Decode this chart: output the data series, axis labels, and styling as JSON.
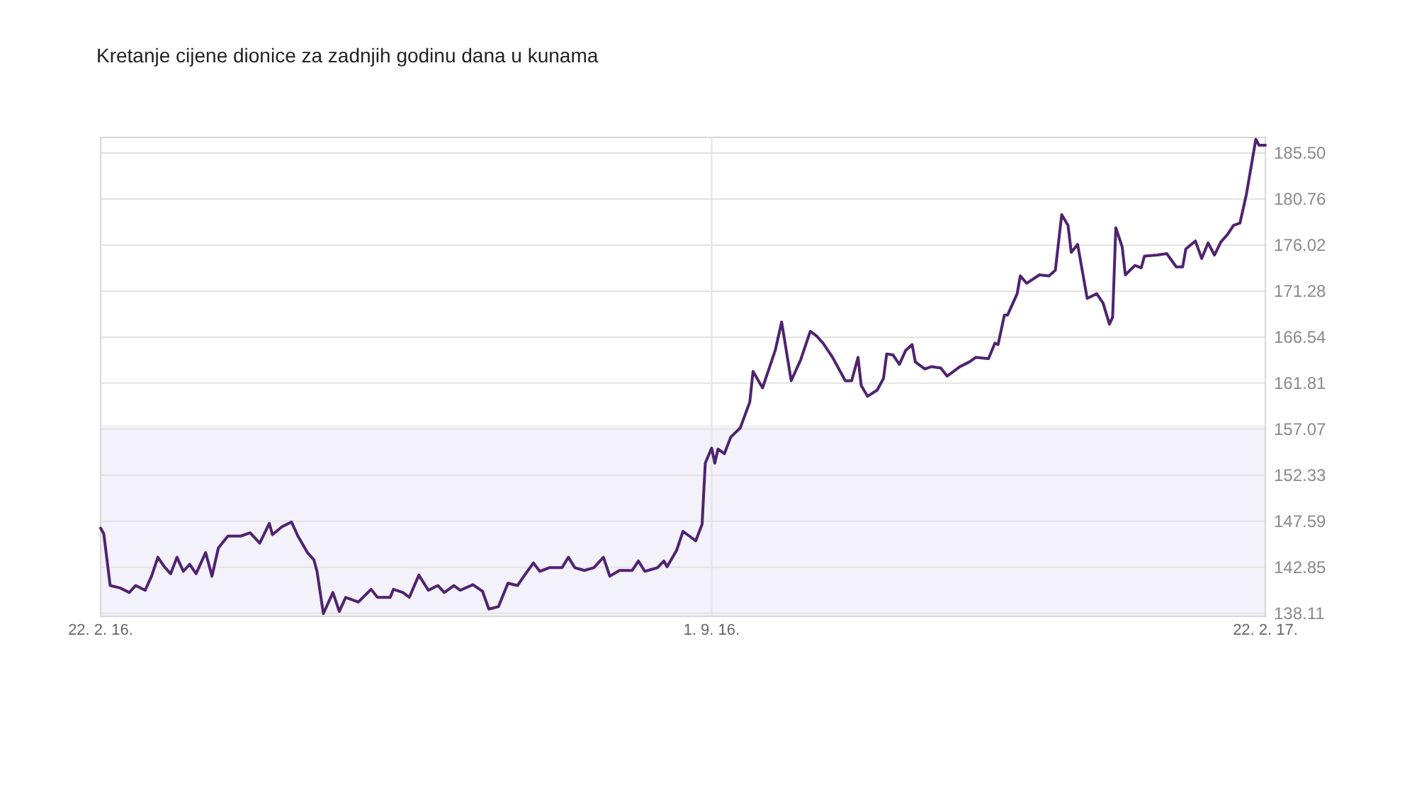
{
  "chart_data": {
    "type": "line",
    "title": "Kretanje cijene dionice za zadnjih godinu dana u kunama",
    "x": [
      "2016-02-22",
      "2016-02-23",
      "2016-02-25",
      "2016-02-28",
      "2016-03-02",
      "2016-03-04",
      "2016-03-07",
      "2016-03-09",
      "2016-03-11",
      "2016-03-13",
      "2016-03-15",
      "2016-03-17",
      "2016-03-19",
      "2016-03-21",
      "2016-03-23",
      "2016-03-26",
      "2016-03-28",
      "2016-03-30",
      "2016-04-02",
      "2016-04-06",
      "2016-04-09",
      "2016-04-12",
      "2016-04-15",
      "2016-04-16",
      "2016-04-19",
      "2016-04-22",
      "2016-04-24",
      "2016-04-27",
      "2016-04-29",
      "2016-04-30",
      "2016-05-02",
      "2016-05-05",
      "2016-05-07",
      "2016-05-09",
      "2016-05-13",
      "2016-05-17",
      "2016-05-19",
      "2016-05-23",
      "2016-05-24",
      "2016-05-27",
      "2016-05-29",
      "2016-06-01",
      "2016-06-04",
      "2016-06-07",
      "2016-06-09",
      "2016-06-12",
      "2016-06-14",
      "2016-06-18",
      "2016-06-21",
      "2016-06-23",
      "2016-06-26",
      "2016-06-29",
      "2016-07-02",
      "2016-07-04",
      "2016-07-07",
      "2016-07-09",
      "2016-07-12",
      "2016-07-16",
      "2016-07-18",
      "2016-07-20",
      "2016-07-23",
      "2016-07-26",
      "2016-07-29",
      "2016-07-31",
      "2016-08-03",
      "2016-08-07",
      "2016-08-09",
      "2016-08-11",
      "2016-08-15",
      "2016-08-17",
      "2016-08-18",
      "2016-08-21",
      "2016-08-23",
      "2016-08-25",
      "2016-08-27",
      "2016-08-29",
      "2016-08-30",
      "2016-09-01",
      "2016-09-02",
      "2016-09-03",
      "2016-09-05",
      "2016-09-07",
      "2016-09-10",
      "2016-09-13",
      "2016-09-14",
      "2016-09-17",
      "2016-09-20",
      "2016-09-21",
      "2016-09-23",
      "2016-09-26",
      "2016-09-29",
      "2016-10-02",
      "2016-10-04",
      "2016-10-06",
      "2016-10-09",
      "2016-10-13",
      "2016-10-15",
      "2016-10-17",
      "2016-10-18",
      "2016-10-20",
      "2016-10-23",
      "2016-10-25",
      "2016-10-26",
      "2016-10-28",
      "2016-10-30",
      "2016-11-01",
      "2016-11-03",
      "2016-11-04",
      "2016-11-07",
      "2016-11-09",
      "2016-11-12",
      "2016-11-14",
      "2016-11-16",
      "2016-11-18",
      "2016-11-21",
      "2016-11-23",
      "2016-11-27",
      "2016-11-29",
      "2016-11-30",
      "2016-12-02",
      "2016-12-03",
      "2016-12-06",
      "2016-12-07",
      "2016-12-09",
      "2016-12-13",
      "2016-12-16",
      "2016-12-18",
      "2016-12-20",
      "2016-12-22",
      "2016-12-23",
      "2016-12-25",
      "2016-12-28",
      "2016-12-31",
      "2017-01-02",
      "2017-01-04",
      "2017-01-05",
      "2017-01-06",
      "2017-01-08",
      "2017-01-09",
      "2017-01-12",
      "2017-01-14",
      "2017-01-15",
      "2017-01-19",
      "2017-01-22",
      "2017-01-25",
      "2017-01-27",
      "2017-01-28",
      "2017-01-31",
      "2017-02-02",
      "2017-02-04",
      "2017-02-06",
      "2017-02-08",
      "2017-02-10",
      "2017-02-12",
      "2017-02-14",
      "2017-02-16",
      "2017-02-19",
      "2017-02-20",
      "2017-02-22"
    ],
    "series": [
      {
        "color": "#4f2370",
        "values": [
          146.88,
          146.3,
          140.97,
          140.73,
          140.25,
          140.97,
          140.48,
          141.93,
          143.88,
          142.91,
          142.18,
          143.88,
          142.43,
          143.15,
          142.18,
          144.36,
          141.93,
          144.84,
          146.06,
          146.06,
          146.4,
          145.33,
          147.37,
          146.21,
          147.02,
          147.51,
          146.06,
          144.36,
          143.63,
          142.43,
          138.07,
          140.25,
          138.3,
          139.75,
          139.27,
          140.58,
          139.75,
          139.75,
          140.58,
          140.25,
          139.75,
          142.04,
          140.48,
          140.97,
          140.25,
          140.97,
          140.48,
          141.06,
          140.38,
          138.55,
          138.79,
          141.21,
          140.97,
          141.93,
          143.3,
          142.43,
          142.81,
          142.81,
          143.88,
          142.81,
          142.52,
          142.81,
          143.88,
          141.93,
          142.52,
          142.52,
          143.49,
          142.43,
          142.81,
          143.49,
          142.91,
          144.6,
          146.54,
          146.06,
          145.57,
          147.27,
          153.57,
          155.12,
          153.57,
          155.02,
          154.54,
          156.24,
          157.2,
          159.87,
          163.01,
          161.32,
          164.22,
          165.19,
          168.1,
          162.05,
          164.22,
          167.14,
          166.65,
          165.92,
          164.46,
          162.05,
          162.05,
          164.46,
          161.56,
          160.45,
          161.08,
          162.29,
          164.81,
          164.71,
          163.74,
          165.19,
          165.77,
          163.99,
          163.26,
          163.5,
          163.36,
          162.53,
          163.01,
          163.5,
          163.99,
          164.46,
          164.32,
          165.92,
          165.77,
          168.82,
          168.82,
          171.01,
          172.85,
          172.08,
          172.95,
          172.85,
          173.43,
          179.15,
          178.04,
          175.27,
          176.09,
          170.53,
          171.01,
          170.04,
          167.87,
          168.59,
          177.8,
          175.85,
          172.95,
          173.92,
          173.68,
          174.89,
          174.99,
          175.14,
          173.77,
          173.77,
          175.61,
          176.44,
          174.64,
          176.24,
          174.99,
          176.34,
          177.07,
          178.04,
          178.28,
          181.18,
          186.91,
          186.3,
          186.3
        ]
      }
    ],
    "xlim": [
      "2016-02-22",
      "2017-02-22"
    ],
    "xticks": [
      {
        "value": "2016-02-22",
        "label": "22. 2. 16."
      },
      {
        "value": "2016-09-01",
        "label": "1. 9. 16."
      },
      {
        "value": "2017-02-22",
        "label": "22. 2. 17."
      }
    ],
    "ylim": [
      137.8,
      187.1
    ],
    "yticks": [
      138.11,
      142.85,
      147.59,
      152.33,
      157.07,
      161.81,
      166.54,
      171.28,
      176.02,
      180.76,
      {
        "value": 185.5,
        "label": "185.50"
      }
    ],
    "bands": [
      {
        "axis": "y",
        "from": 137.8,
        "to": 157.5,
        "color": "#f3f1f9"
      }
    ],
    "grid": true,
    "marker": "none"
  }
}
